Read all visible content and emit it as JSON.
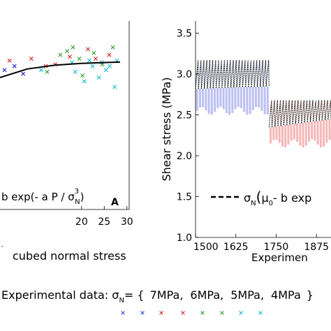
{
  "chart_data": [
    {
      "type": "scatter",
      "panel_letter": "A",
      "xlabel": "cubed normal stress",
      "x_ticks": [
        20,
        25,
        30
      ],
      "xlim": [
        2,
        30.5
      ],
      "ylim": [
        0,
        1
      ],
      "fit_label": {
        "prefix": "b exp(- a P / σ",
        "sup": "3",
        "sub": "N",
        "suffix": ")"
      },
      "fit_curve": {
        "x": [
          2,
          8,
          14,
          20,
          26,
          28.5
        ],
        "y": [
          0.7,
          0.745,
          0.765,
          0.775,
          0.78,
          0.782
        ]
      },
      "series": [
        {
          "color": "#1f1fcc",
          "x": [
            3.0,
            5.2,
            7.1
          ],
          "y": [
            0.74,
            0.76,
            0.72
          ]
        },
        {
          "color": "#d62728",
          "x": [
            4.1,
            8.9,
            12.1,
            17.4
          ],
          "y": [
            0.79,
            0.8,
            0.76,
            0.81
          ]
        },
        {
          "color": "#2ca02c",
          "x": [
            12.4,
            15.3,
            16.8,
            18.1,
            19.5,
            20.2,
            22.7,
            24.6,
            26.9
          ],
          "y": [
            0.73,
            0.82,
            0.84,
            0.86,
            0.8,
            0.71,
            0.83,
            0.77,
            0.86
          ]
        },
        {
          "color": "#17becf",
          "x": [
            11.1,
            17.9,
            18.6,
            20.6,
            21.7,
            22.4,
            23.8,
            24.4,
            25.4,
            26.2,
            27.3,
            27.8
          ],
          "y": [
            0.74,
            0.78,
            0.73,
            0.68,
            0.79,
            0.76,
            0.7,
            0.78,
            0.74,
            0.76,
            0.65,
            0.79
          ]
        },
        {
          "color": "#d62728",
          "x": [
            14.2,
            21.4,
            23.1,
            26.1
          ],
          "y": [
            0.77,
            0.85,
            0.8,
            0.82
          ]
        }
      ]
    },
    {
      "type": "line",
      "ylabel": "Shear stress (MPa)",
      "xlabel": "Experimen",
      "x_ticks": [
        1500,
        1625,
        1750,
        1875
      ],
      "y_ticks": [
        "1.0",
        "1.5",
        "2.0",
        "2.5",
        "3.0",
        "3.5"
      ],
      "y_tick_values": [
        1.0,
        1.5,
        2.0,
        2.5,
        3.0,
        3.5
      ],
      "xlim": [
        1500,
        1920
      ],
      "ylim": [
        1.0,
        3.65
      ],
      "legend_label": {
        "prefix": "σ",
        "sub": "N",
        "paren_body": "μ",
        "paren_sub": "0",
        "suffix": "- b exp"
      },
      "segments": [
        {
          "name": "7MPa",
          "color_top": "#000000",
          "color_low": "#3b4bd6",
          "x_start": 1500,
          "x_end": 1728,
          "cycles": 25,
          "peak": 3.17,
          "trough_start": 2.82,
          "trough_end": 2.85,
          "low_min": 2.55
        },
        {
          "name": "6MPa",
          "color_top": "#000000",
          "color_low": "#e03030",
          "x_start": 1728,
          "x_end": 1920,
          "cycles": 21,
          "peak": 2.68,
          "trough_start": 2.35,
          "trough_end": 2.45,
          "low_min": 2.15
        }
      ]
    }
  ],
  "legend": {
    "prefix": "Experimental data: ",
    "sigma": "σ",
    "sub": "N",
    "equals": "= {",
    "entries": [
      {
        "label": "7MPa,",
        "color": "#1f1fcc"
      },
      {
        "label": "6MPa,",
        "color": "#1f1fcc"
      },
      {
        "label": "5MPa,",
        "color": "#d62728"
      },
      {
        "label": "4MPa",
        "color": "#d62728"
      }
    ],
    "close": "}",
    "marker_colors": [
      "#3b4bd6",
      "#3b4bd6",
      "#d62728",
      "#d62728",
      "#2ca02c",
      "#2ca02c",
      "#17becf",
      "#17becf"
    ]
  }
}
